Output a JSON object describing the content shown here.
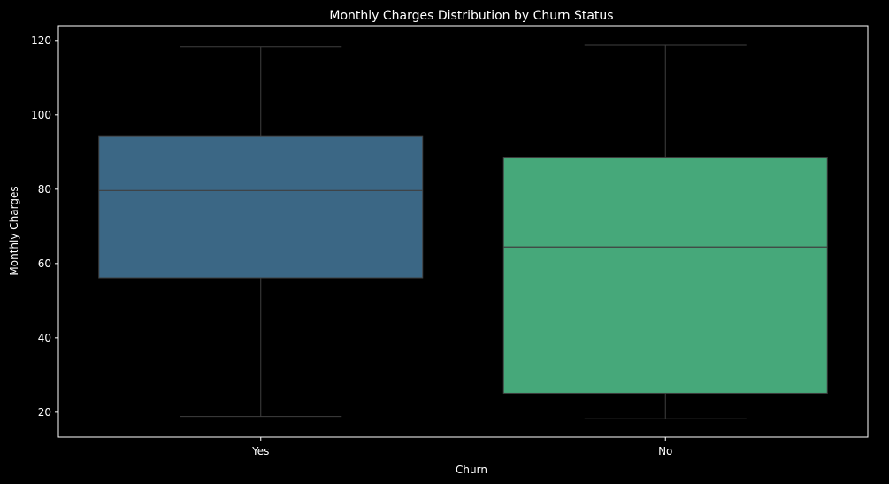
{
  "chart_data": {
    "type": "box",
    "title": "Monthly Charges Distribution by Churn Status",
    "xlabel": "Churn",
    "ylabel": "Monthly Charges",
    "ylim": [
      13.3,
      124.0
    ],
    "yticks": [
      20,
      40,
      60,
      80,
      100,
      120
    ],
    "grid": false,
    "categories": [
      "Yes",
      "No"
    ],
    "boxes": [
      {
        "category": "Yes",
        "min": 18.85,
        "q1": 56.15,
        "median": 79.65,
        "q3": 94.2,
        "max": 118.35,
        "color": "#3b6785"
      },
      {
        "category": "No",
        "min": 18.25,
        "q1": 25.1,
        "median": 64.43,
        "q3": 88.4,
        "max": 118.75,
        "color": "#46a87a"
      }
    ]
  },
  "colors": {
    "background": "#000000",
    "axes": "#ffffff",
    "text": "#ffffff",
    "box_edge": "#3f3f3f"
  }
}
